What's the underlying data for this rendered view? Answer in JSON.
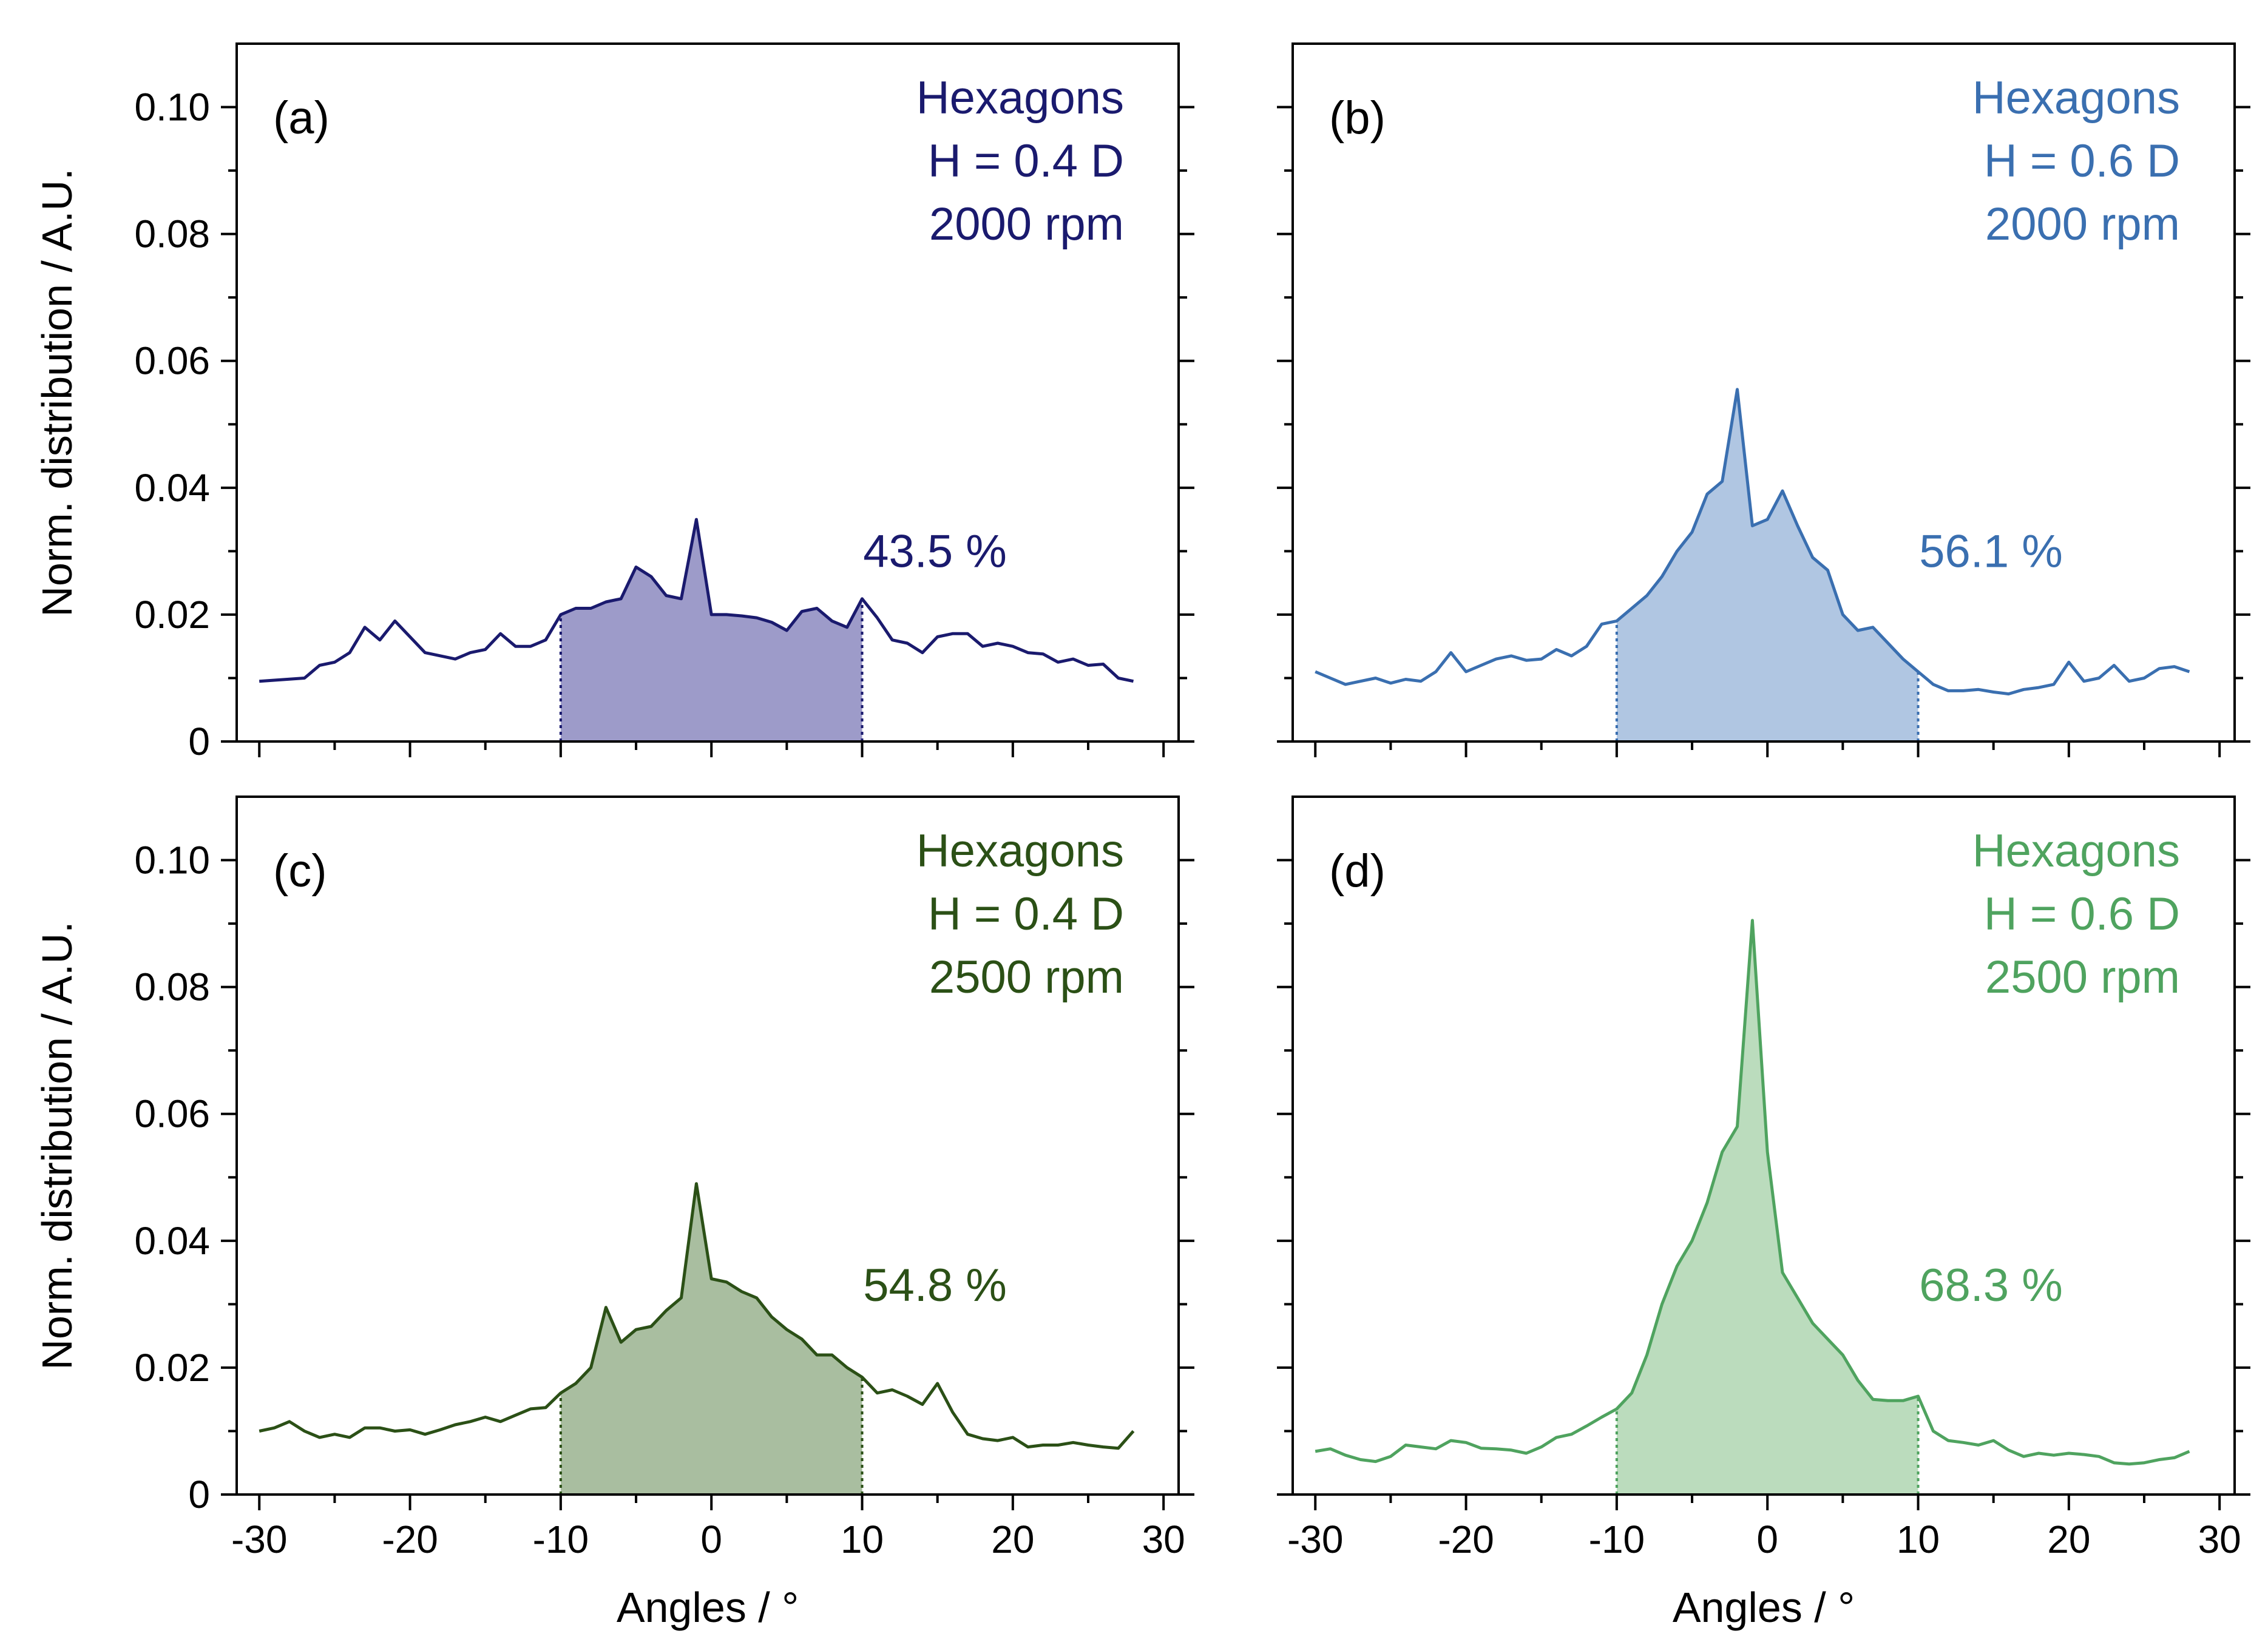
{
  "chart_data": [
    {
      "type": "area",
      "panel_label": "(a)",
      "legend": [
        "Hexagons",
        "H = 0.4 D",
        "2000 rpm"
      ],
      "percentage_label": "43.5 %",
      "color": "#1a1a6e",
      "fill_color": "#9d9bc9",
      "shaded_range": [
        -10,
        10
      ],
      "xlim": [
        -31.5,
        31
      ],
      "ylim": [
        0,
        0.11
      ],
      "x": [
        -30,
        -27,
        -26,
        -25,
        -24,
        -23,
        -22,
        -21,
        -19,
        -17,
        -16,
        -15,
        -14,
        -13,
        -12,
        -11,
        -10,
        -9,
        -8,
        -7,
        -6,
        -5,
        -4,
        -3,
        -2,
        -1,
        0,
        1,
        2,
        3,
        4,
        5,
        6,
        7,
        8,
        9,
        10,
        11,
        12,
        13,
        14,
        15,
        16,
        17,
        18,
        19,
        20,
        21,
        22,
        23,
        24,
        25,
        26,
        27,
        28
      ],
      "y": [
        0.0095,
        0.01,
        0.012,
        0.0125,
        0.014,
        0.018,
        0.016,
        0.019,
        0.014,
        0.013,
        0.014,
        0.0145,
        0.017,
        0.015,
        0.015,
        0.016,
        0.02,
        0.021,
        0.021,
        0.022,
        0.0225,
        0.0275,
        0.026,
        0.023,
        0.0225,
        0.035,
        0.02,
        0.02,
        0.0198,
        0.0195,
        0.0188,
        0.0175,
        0.0205,
        0.021,
        0.019,
        0.018,
        0.0225,
        0.0195,
        0.016,
        0.0155,
        0.014,
        0.0165,
        0.017,
        0.017,
        0.015,
        0.0155,
        0.015,
        0.014,
        0.0138,
        0.0125,
        0.013,
        0.012,
        0.0122,
        0.01,
        0.0095
      ]
    },
    {
      "type": "area",
      "panel_label": "(b)",
      "legend": [
        "Hexagons",
        "H = 0.6 D",
        "2000 rpm"
      ],
      "percentage_label": "56.1 %",
      "color": "#3a6fb0",
      "fill_color": "#b0c6e2",
      "shaded_range": [
        -10,
        10
      ],
      "xlim": [
        -31.5,
        31
      ],
      "ylim": [
        0,
        0.11
      ],
      "x": [
        -30,
        -29,
        -28,
        -27,
        -26,
        -25,
        -24,
        -23,
        -22,
        -21,
        -20,
        -19,
        -18,
        -17,
        -16,
        -15,
        -14,
        -13,
        -12,
        -11,
        -10,
        -9,
        -8,
        -7,
        -6,
        -5,
        -4,
        -3,
        -2,
        -1,
        0,
        1,
        2,
        3,
        4,
        5,
        6,
        7,
        8,
        9,
        10,
        11,
        12,
        13,
        14,
        15,
        16,
        17,
        18,
        19,
        20,
        21,
        22,
        23,
        24,
        25,
        26,
        27,
        28
      ],
      "y": [
        0.011,
        0.01,
        0.009,
        0.0095,
        0.01,
        0.0092,
        0.0098,
        0.0095,
        0.011,
        0.014,
        0.011,
        0.012,
        0.013,
        0.0135,
        0.0128,
        0.013,
        0.0145,
        0.0135,
        0.015,
        0.0185,
        0.019,
        0.021,
        0.023,
        0.026,
        0.03,
        0.033,
        0.039,
        0.041,
        0.0555,
        0.034,
        0.035,
        0.0395,
        0.034,
        0.029,
        0.027,
        0.02,
        0.0175,
        0.018,
        0.0155,
        0.013,
        0.011,
        0.009,
        0.008,
        0.008,
        0.0082,
        0.0078,
        0.0075,
        0.0082,
        0.0085,
        0.009,
        0.0125,
        0.0095,
        0.01,
        0.012,
        0.0095,
        0.01,
        0.0115,
        0.0118,
        0.011
      ]
    },
    {
      "type": "area",
      "panel_label": "(c)",
      "legend": [
        "Hexagons",
        "H = 0.4 D",
        "2500 rpm"
      ],
      "percentage_label": "54.8 %",
      "color": "#2b5016",
      "fill_color": "#a9bea0",
      "shaded_range": [
        -10,
        10
      ],
      "xlim": [
        -31.5,
        31
      ],
      "ylim": [
        0,
        0.11
      ],
      "x": [
        -30,
        -29,
        -28,
        -27,
        -26,
        -25,
        -24,
        -23,
        -22,
        -21,
        -20,
        -19,
        -18,
        -17,
        -16,
        -15,
        -14,
        -13,
        -12,
        -11,
        -10,
        -9,
        -8,
        -7,
        -6,
        -5,
        -4,
        -3,
        -2,
        -1,
        0,
        1,
        2,
        3,
        4,
        5,
        6,
        7,
        8,
        9,
        10,
        11,
        12,
        13,
        14,
        15,
        16,
        17,
        18,
        19,
        20,
        21,
        22,
        23,
        24,
        25,
        26,
        27,
        28
      ],
      "y": [
        0.01,
        0.0105,
        0.0115,
        0.01,
        0.009,
        0.0095,
        0.009,
        0.0105,
        0.0105,
        0.01,
        0.0102,
        0.0095,
        0.0102,
        0.011,
        0.0115,
        0.0122,
        0.0115,
        0.0125,
        0.0135,
        0.0137,
        0.016,
        0.0175,
        0.02,
        0.0295,
        0.024,
        0.026,
        0.0265,
        0.029,
        0.031,
        0.049,
        0.034,
        0.0335,
        0.032,
        0.031,
        0.028,
        0.026,
        0.0245,
        0.022,
        0.022,
        0.02,
        0.0185,
        0.016,
        0.0165,
        0.0155,
        0.0142,
        0.0175,
        0.013,
        0.0095,
        0.0088,
        0.0085,
        0.009,
        0.0075,
        0.0078,
        0.0078,
        0.0082,
        0.0078,
        0.0075,
        0.0073,
        0.01
      ]
    },
    {
      "type": "area",
      "panel_label": "(d)",
      "legend": [
        "Hexagons",
        "H = 0.6 D",
        "2500 rpm"
      ],
      "percentage_label": "68.3 %",
      "color": "#4fa35f",
      "fill_color": "#bbdcbd",
      "shaded_range": [
        -10,
        10
      ],
      "xlim": [
        -31.5,
        31
      ],
      "ylim": [
        0,
        0.11
      ],
      "x": [
        -30,
        -29,
        -28,
        -27,
        -26,
        -25,
        -24,
        -23,
        -22,
        -21,
        -20,
        -19,
        -18,
        -17,
        -16,
        -15,
        -14,
        -13,
        -12,
        -11,
        -10,
        -9,
        -8,
        -7,
        -6,
        -5,
        -4,
        -3,
        -2,
        -1,
        0,
        1,
        2,
        3,
        4,
        5,
        6,
        7,
        8,
        9,
        10,
        11,
        12,
        13,
        14,
        15,
        16,
        17,
        18,
        19,
        20,
        21,
        22,
        23,
        24,
        25,
        26,
        27,
        28
      ],
      "y": [
        0.0068,
        0.0072,
        0.0062,
        0.0055,
        0.0052,
        0.006,
        0.0078,
        0.0075,
        0.0072,
        0.0085,
        0.0082,
        0.0073,
        0.0072,
        0.007,
        0.0065,
        0.0075,
        0.009,
        0.0095,
        0.0108,
        0.0122,
        0.0135,
        0.016,
        0.022,
        0.03,
        0.036,
        0.04,
        0.046,
        0.054,
        0.058,
        0.0905,
        0.054,
        0.035,
        0.031,
        0.027,
        0.0245,
        0.022,
        0.018,
        0.015,
        0.0148,
        0.0148,
        0.0155,
        0.01,
        0.0085,
        0.0082,
        0.0078,
        0.0085,
        0.007,
        0.006,
        0.0065,
        0.0062,
        0.0065,
        0.0063,
        0.006,
        0.005,
        0.0048,
        0.005,
        0.0055,
        0.0058,
        0.0068
      ]
    }
  ],
  "axes": {
    "ylabel": "Norm. distribution / A.U.",
    "xlabel": "Angles / °",
    "y_ticks": [
      0,
      0.02,
      0.04,
      0.06,
      0.08,
      0.1
    ],
    "y_tick_labels": [
      "0",
      "0.02",
      "0.04",
      "0.06",
      "0.08",
      "0.10"
    ],
    "x_ticks": [
      -30,
      -20,
      -10,
      0,
      10,
      20,
      30
    ],
    "x_tick_labels": [
      "-30",
      "-20",
      "-10",
      "0",
      "10",
      "20",
      "30"
    ]
  }
}
